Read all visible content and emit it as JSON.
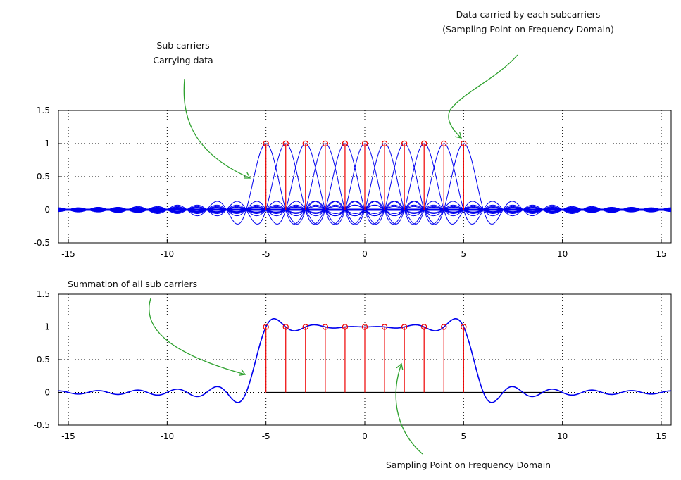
{
  "chart_data": [
    {
      "type": "line",
      "title": "",
      "xlabel": "",
      "ylabel": "",
      "xlim": [
        -15.5,
        15.5
      ],
      "ylim": [
        -0.5,
        1.5
      ],
      "x_ticks": [
        "-15",
        "-10",
        "-5",
        "0",
        "5",
        "10",
        "15"
      ],
      "y_ticks": [
        "-0.5",
        "0",
        "0.5",
        "1",
        "1.5"
      ],
      "grid": true,
      "series": [
        {
          "name": "sub carriers",
          "kind": "sinc",
          "centers": [
            -5,
            -4,
            -3,
            -2,
            -1,
            0,
            1,
            2,
            3,
            4,
            5
          ],
          "amplitude": 1,
          "color": "#0000ee"
        },
        {
          "name": "sampling points",
          "kind": "stem",
          "x": [
            -5,
            -4,
            -3,
            -2,
            -1,
            0,
            1,
            2,
            3,
            4,
            5
          ],
          "y": [
            1,
            1,
            1,
            1,
            1,
            1,
            1,
            1,
            1,
            1,
            1
          ],
          "color": "#ee0000"
        }
      ]
    },
    {
      "type": "line",
      "title": "",
      "xlabel": "",
      "ylabel": "",
      "xlim": [
        -15.5,
        15.5
      ],
      "ylim": [
        -0.5,
        1.5
      ],
      "x_ticks": [
        "-15",
        "-10",
        "-5",
        "0",
        "5",
        "10",
        "15"
      ],
      "y_ticks": [
        "-0.5",
        "0",
        "0.5",
        "1",
        "1.5"
      ],
      "grid": true,
      "series": [
        {
          "name": "summation of all sub carriers",
          "kind": "sinc-sum",
          "centers": [
            -5,
            -4,
            -3,
            -2,
            -1,
            0,
            1,
            2,
            3,
            4,
            5
          ],
          "color": "#0000ee"
        },
        {
          "name": "sampling points",
          "kind": "stem",
          "x": [
            -5,
            -4,
            -3,
            -2,
            -1,
            0,
            1,
            2,
            3,
            4,
            5
          ],
          "y": [
            1,
            1,
            1,
            1,
            1,
            1,
            1,
            1,
            1,
            1,
            1
          ],
          "color": "#ee0000"
        }
      ]
    }
  ],
  "annotations": {
    "subcarriers_line1": "Sub carriers",
    "subcarriers_line2": "Carrying data",
    "data_line1": "Data carried by each subcarriers",
    "data_line2": "(Sampling Point on Frequency Domain)",
    "summation": "Summation of all sub carriers",
    "sampling": "Sampling Point on Frequency Domain"
  },
  "colors": {
    "carrier": "#0000ee",
    "stem": "#ee0000",
    "arrow": "#2ca02c",
    "axis": "#000000"
  }
}
